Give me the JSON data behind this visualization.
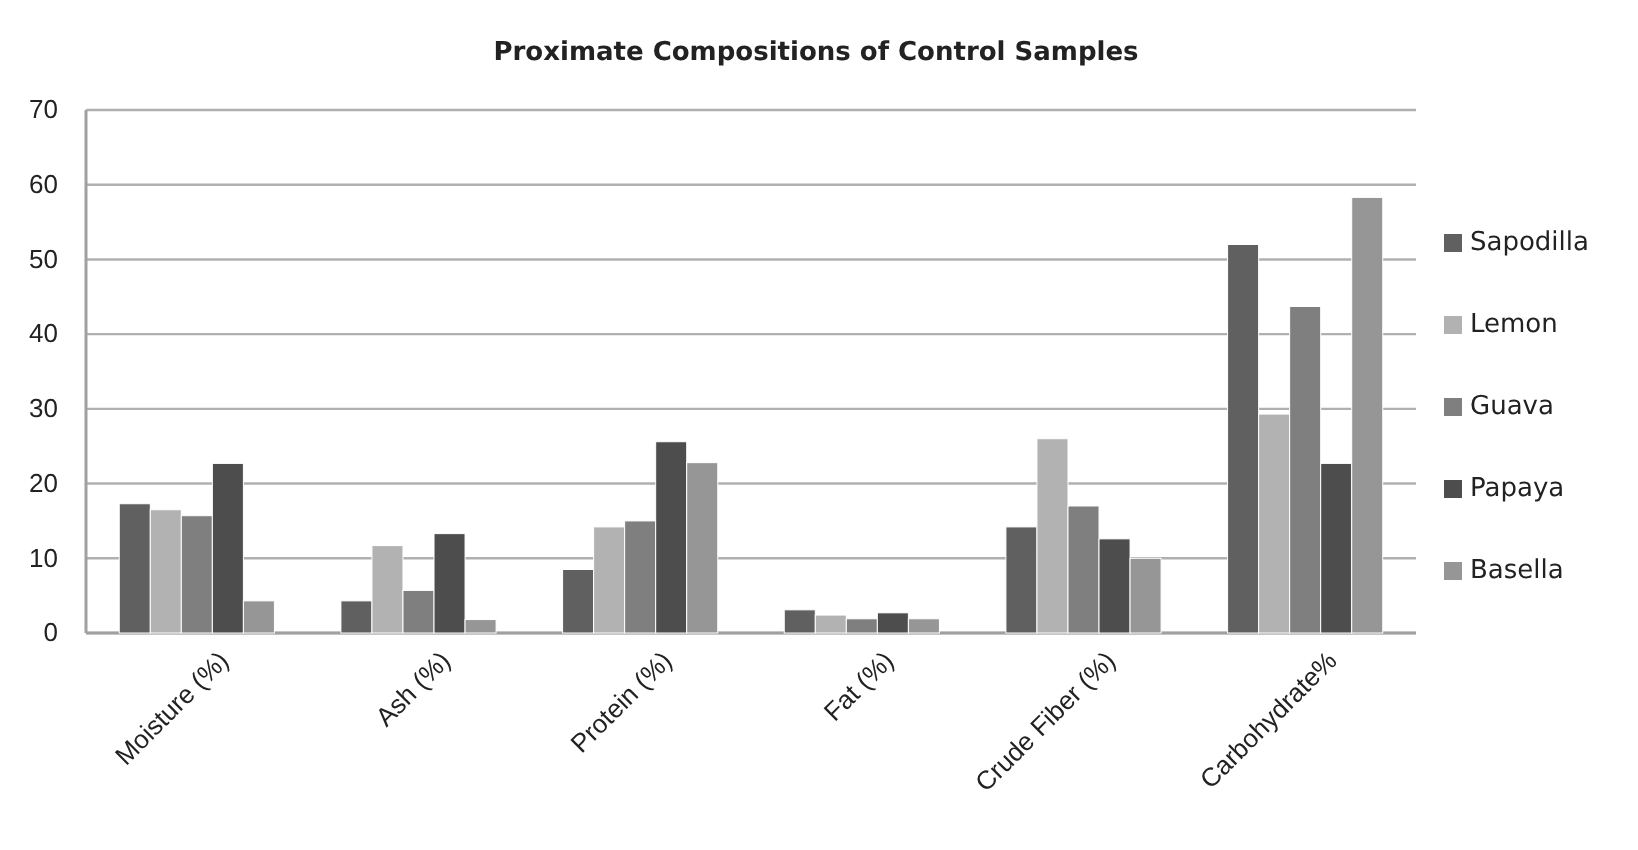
{
  "chart_data": {
    "type": "bar",
    "title": "Proximate Compositions of Control Samples",
    "categories": [
      "Moisture (%)",
      "Ash (%)",
      "Protein (%)",
      "Fat (%)",
      "Crude Fiber (%)",
      "Carbohydrate%"
    ],
    "series": [
      {
        "name": "Sapodilla",
        "color": "#606060",
        "values": [
          17.3,
          4.3,
          8.5,
          3.1,
          14.2,
          52
        ]
      },
      {
        "name": "Lemon",
        "color": "#b2b2b2",
        "values": [
          16.5,
          11.7,
          14.2,
          2.4,
          26,
          29.3
        ]
      },
      {
        "name": "Guava",
        "color": "#7f7f7f",
        "values": [
          15.7,
          5.7,
          15,
          1.9,
          17,
          43.7
        ]
      },
      {
        "name": "Papaya",
        "color": "#4d4d4d",
        "values": [
          22.7,
          13.3,
          25.6,
          2.7,
          12.6,
          22.7
        ]
      },
      {
        "name": "Basella",
        "color": "#969696",
        "values": [
          4.3,
          1.8,
          22.8,
          1.9,
          10,
          58.3
        ]
      }
    ],
    "ylim": [
      0,
      70
    ],
    "yticks": [
      0,
      10,
      20,
      30,
      40,
      50,
      60,
      70
    ],
    "grid": "y",
    "legend": "right"
  }
}
